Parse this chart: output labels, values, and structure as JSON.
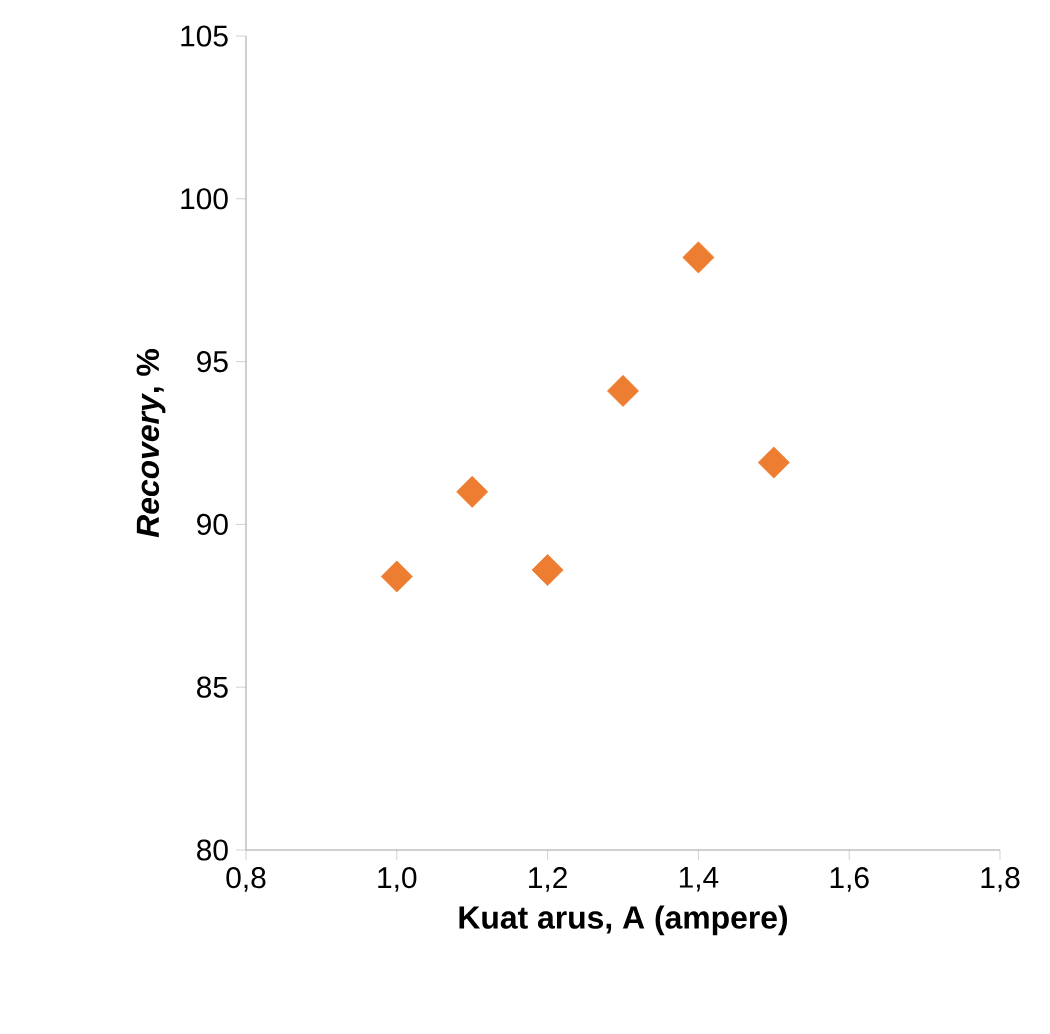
{
  "chart_data": {
    "type": "scatter",
    "xlabel": "Kuat arus, A (ampere)",
    "ylabel": "*Recovery*, %",
    "x": [
      1.0,
      1.1,
      1.2,
      1.3,
      1.4,
      1.5
    ],
    "values": [
      88.4,
      91.0,
      88.6,
      94.1,
      98.2,
      91.9
    ],
    "color": "#ed7d31",
    "marker": "diamond",
    "grid": false,
    "xlim": [
      0.8,
      1.8
    ],
    "ylim": [
      80,
      105
    ],
    "xticks": [
      {
        "value": 0.8,
        "label": "0,8"
      },
      {
        "value": 1.0,
        "label": "1,0"
      },
      {
        "value": 1.2,
        "label": "1,2"
      },
      {
        "value": 1.4,
        "label": "1,4"
      },
      {
        "value": 1.6,
        "label": "1,6"
      },
      {
        "value": 1.8,
        "label": "1,8"
      }
    ],
    "yticks": [
      80,
      85,
      90,
      95,
      100,
      105
    ]
  }
}
